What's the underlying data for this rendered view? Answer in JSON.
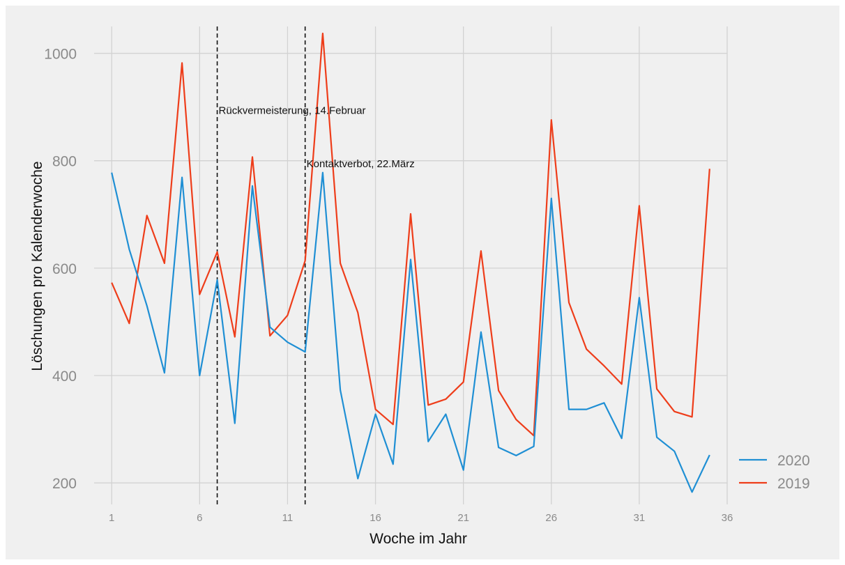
{
  "chart_data": {
    "type": "line",
    "xlabel": "Woche im Jahr",
    "ylabel": "Löschungen pro Kalenderwoche",
    "xlim": [
      0,
      36
    ],
    "ylim": [
      160,
      1050
    ],
    "x_ticks": [
      1,
      6,
      11,
      16,
      21,
      26,
      31,
      36
    ],
    "y_ticks": [
      200,
      400,
      600,
      800,
      1000
    ],
    "grid": true,
    "legend_position": "bottom-right",
    "x": [
      1,
      2,
      3,
      4,
      5,
      6,
      7,
      8,
      9,
      10,
      11,
      12,
      13,
      14,
      15,
      16,
      17,
      18,
      19,
      20,
      21,
      22,
      23,
      24,
      25,
      26,
      27,
      28,
      29,
      30,
      31,
      32,
      33,
      34,
      35
    ],
    "series": [
      {
        "name": "2020",
        "color": "#1f8fd4",
        "values": [
          778,
          635,
          530,
          405,
          769,
          400,
          578,
          311,
          753,
          490,
          462,
          444,
          778,
          373,
          208,
          328,
          235,
          616,
          277,
          328,
          224,
          481,
          266,
          251,
          268,
          730,
          337,
          337,
          349,
          283,
          545,
          285,
          259,
          183,
          252
        ]
      },
      {
        "name": "2019",
        "color": "#ee3d1a",
        "values": [
          573,
          497,
          698,
          609,
          982,
          551,
          630,
          472,
          807,
          474,
          512,
          614,
          1037,
          609,
          517,
          337,
          309,
          701,
          345,
          356,
          388,
          632,
          372,
          318,
          288,
          876,
          536,
          449,
          418,
          384,
          716,
          375,
          333,
          323,
          785
        ]
      }
    ],
    "vlines": [
      {
        "x": 7,
        "label": "Rückvermeisterung, 14.Februar",
        "label_y": 895
      },
      {
        "x": 12,
        "label": "Kontaktverbot, 22.März",
        "label_y": 796
      }
    ]
  }
}
